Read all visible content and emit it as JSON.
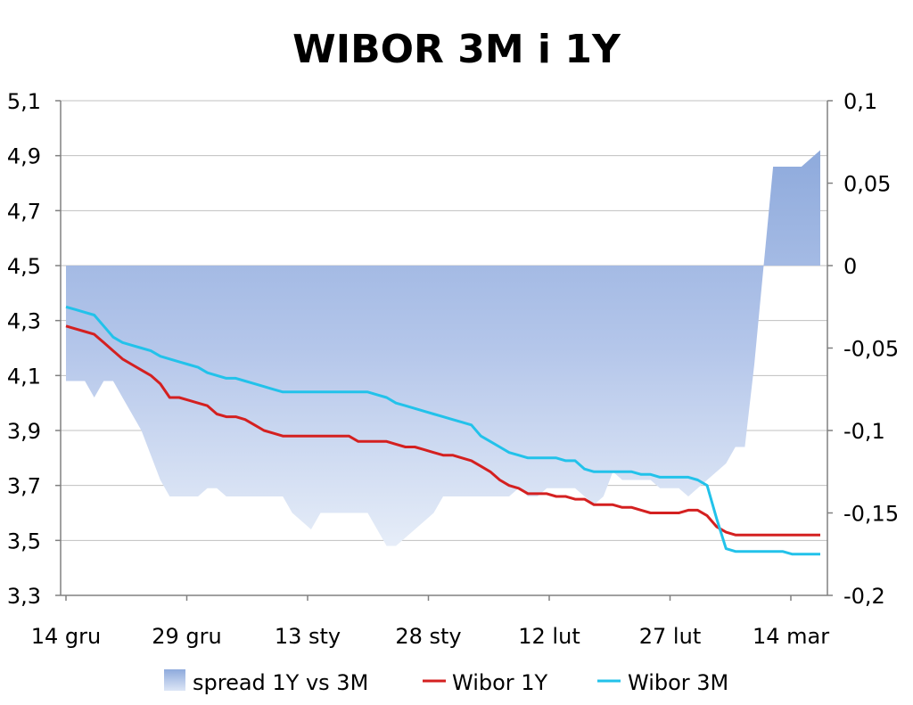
{
  "chart_data": {
    "type": "line",
    "title": "WIBOR 3M i 1Y",
    "left_axis": {
      "ylim": [
        3.3,
        5.1
      ],
      "ticks": [
        "5,1",
        "4,9",
        "4,7",
        "4,5",
        "4,3",
        "4,1",
        "3,9",
        "3,7",
        "3,5",
        "3,3"
      ]
    },
    "right_axis": {
      "ylim": [
        -0.2,
        0.1
      ],
      "ticks": [
        "0,1",
        "0,05",
        "0",
        "-0,05",
        "-0,1",
        "-0,15",
        "-0,2"
      ]
    },
    "x_ticks": [
      "14 gru",
      "29 gru",
      "13 sty",
      "28 sty",
      "12 lut",
      "27 lut",
      "14 mar"
    ],
    "grid": true,
    "legend_position": "bottom",
    "series": [
      {
        "name": "spread 1Y vs 3M",
        "kind": "area",
        "axis": "right",
        "color": "#8eaadc",
        "values": [
          -0.07,
          -0.07,
          -0.07,
          -0.08,
          -0.07,
          -0.07,
          -0.08,
          -0.09,
          -0.1,
          -0.115,
          -0.13,
          -0.14,
          -0.14,
          -0.14,
          -0.14,
          -0.135,
          -0.135,
          -0.14,
          -0.14,
          -0.14,
          -0.14,
          -0.14,
          -0.14,
          -0.14,
          -0.15,
          -0.155,
          -0.16,
          -0.15,
          -0.15,
          -0.15,
          -0.15,
          -0.15,
          -0.15,
          -0.16,
          -0.17,
          -0.17,
          -0.165,
          -0.16,
          -0.155,
          -0.15,
          -0.14,
          -0.14,
          -0.14,
          -0.14,
          -0.14,
          -0.14,
          -0.14,
          -0.14,
          -0.135,
          -0.14,
          -0.14,
          -0.135,
          -0.135,
          -0.135,
          -0.135,
          -0.14,
          -0.145,
          -0.14,
          -0.125,
          -0.13,
          -0.13,
          -0.13,
          -0.13,
          -0.135,
          -0.135,
          -0.135,
          -0.14,
          -0.135,
          -0.13,
          -0.125,
          -0.12,
          -0.11,
          -0.11,
          -0.06,
          0.0,
          0.06,
          0.06,
          0.06,
          0.06,
          0.065,
          0.07
        ]
      },
      {
        "name": "Wibor 1Y",
        "kind": "line",
        "axis": "left",
        "color": "#d42020",
        "values": [
          4.28,
          4.27,
          4.26,
          4.25,
          4.22,
          4.19,
          4.16,
          4.14,
          4.12,
          4.1,
          4.07,
          4.02,
          4.02,
          4.01,
          4.0,
          3.99,
          3.96,
          3.95,
          3.95,
          3.94,
          3.92,
          3.9,
          3.89,
          3.88,
          3.88,
          3.88,
          3.88,
          3.88,
          3.88,
          3.88,
          3.88,
          3.86,
          3.86,
          3.86,
          3.86,
          3.85,
          3.84,
          3.84,
          3.83,
          3.82,
          3.81,
          3.81,
          3.8,
          3.79,
          3.77,
          3.75,
          3.72,
          3.7,
          3.69,
          3.67,
          3.67,
          3.67,
          3.66,
          3.66,
          3.65,
          3.65,
          3.63,
          3.63,
          3.63,
          3.62,
          3.62,
          3.61,
          3.6,
          3.6,
          3.6,
          3.6,
          3.61,
          3.61,
          3.59,
          3.55,
          3.53,
          3.52,
          3.52,
          3.52,
          3.52,
          3.52,
          3.52,
          3.52,
          3.52,
          3.52,
          3.52
        ]
      },
      {
        "name": "Wibor 3M",
        "kind": "line",
        "axis": "left",
        "color": "#22c2ea",
        "values": [
          4.35,
          4.34,
          4.33,
          4.32,
          4.28,
          4.24,
          4.22,
          4.21,
          4.2,
          4.19,
          4.17,
          4.16,
          4.15,
          4.14,
          4.13,
          4.11,
          4.1,
          4.09,
          4.09,
          4.08,
          4.07,
          4.06,
          4.05,
          4.04,
          4.04,
          4.04,
          4.04,
          4.04,
          4.04,
          4.04,
          4.04,
          4.04,
          4.04,
          4.03,
          4.02,
          4.0,
          3.99,
          3.98,
          3.97,
          3.96,
          3.95,
          3.94,
          3.93,
          3.92,
          3.88,
          3.86,
          3.84,
          3.82,
          3.81,
          3.8,
          3.8,
          3.8,
          3.8,
          3.79,
          3.79,
          3.76,
          3.75,
          3.75,
          3.75,
          3.75,
          3.75,
          3.74,
          3.74,
          3.73,
          3.73,
          3.73,
          3.73,
          3.72,
          3.7,
          3.58,
          3.47,
          3.46,
          3.46,
          3.46,
          3.46,
          3.46,
          3.46,
          3.45,
          3.45,
          3.45,
          3.45
        ]
      }
    ]
  }
}
